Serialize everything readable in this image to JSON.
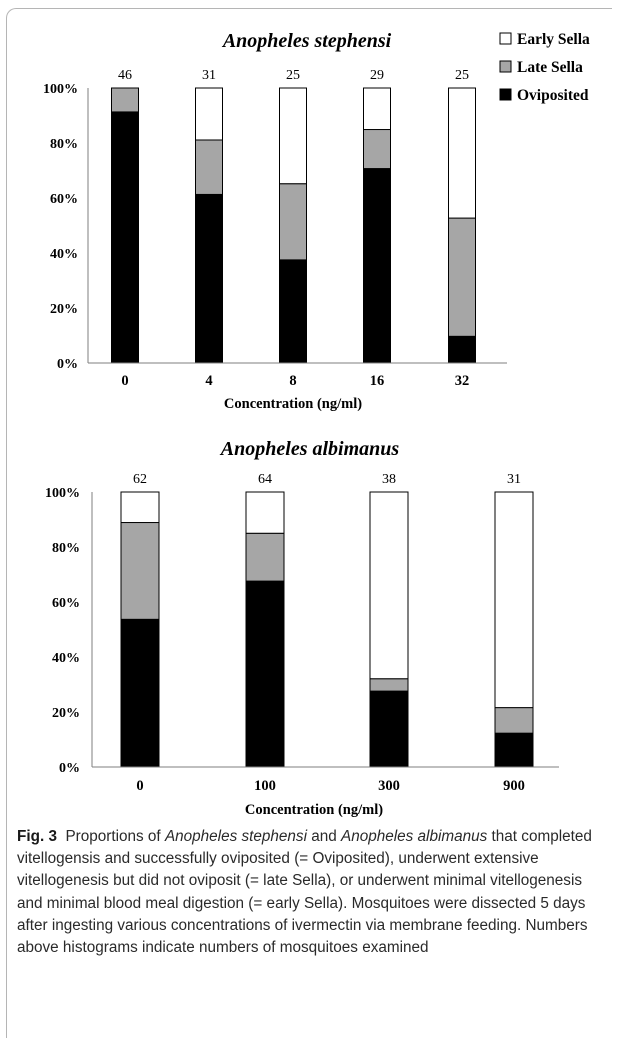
{
  "chart_data": [
    {
      "type": "bar",
      "stacked": true,
      "title": "Anopheles stephensi",
      "xlabel": "Concentration (ng/ml)",
      "ylabel": "",
      "ylim": [
        0,
        100
      ],
      "yticks": [
        "0%",
        "20%",
        "40%",
        "60%",
        "80%",
        "100%"
      ],
      "categories": [
        "0",
        "4",
        "8",
        "16",
        "32"
      ],
      "n_labels": [
        "46",
        "31",
        "25",
        "29",
        "25"
      ],
      "series": [
        {
          "name": "Oviposited",
          "color": "#000000",
          "values": [
            91.3,
            61.3,
            37.5,
            70.7,
            9.7
          ]
        },
        {
          "name": "Late Sella",
          "color": "#a6a6a6",
          "values": [
            8.7,
            19.8,
            27.7,
            14.2,
            43.0
          ]
        },
        {
          "name": "Early Sella",
          "color": "#ffffff",
          "values": [
            0,
            18.9,
            34.8,
            15.1,
            47.3
          ]
        }
      ],
      "legend": {
        "placement": "top-right",
        "entries": [
          "Early Sella",
          "Late Sella",
          "Oviposited"
        ]
      }
    },
    {
      "type": "bar",
      "stacked": true,
      "title": "Anopheles albimanus",
      "xlabel": "Concentration (ng/ml)",
      "ylabel": "",
      "ylim": [
        0,
        100
      ],
      "yticks": [
        "0%",
        "20%",
        "40%",
        "60%",
        "80%",
        "100%"
      ],
      "categories": [
        "0",
        "100",
        "300",
        "900"
      ],
      "n_labels": [
        "62",
        "64",
        "38",
        "31"
      ],
      "series": [
        {
          "name": "Oviposited",
          "color": "#000000",
          "values": [
            53.7,
            67.6,
            27.6,
            12.3
          ]
        },
        {
          "name": "Late Sella",
          "color": "#a6a6a6",
          "values": [
            35.2,
            17.4,
            4.5,
            9.3
          ]
        },
        {
          "name": "Early Sella",
          "color": "#ffffff",
          "values": [
            11.1,
            15.0,
            67.9,
            78.4
          ]
        }
      ]
    }
  ],
  "caption": {
    "label": "Fig. 3",
    "seg1": "Proportions of ",
    "species1": "Anopheles stephensi",
    "seg2": " and ",
    "species2": "Anopheles albimanus",
    "seg3": " that completed vitellogensis and successfully oviposited (= Oviposited), underwent extensive vitellogenesis but did not oviposit (= late Sella), or underwent minimal vitellogenesis and minimal blood meal digestion (= early Sella). Mosquitoes were dissected 5 days after ingesting various concentrations of ivermectin via membrane feeding. Numbers above histograms indicate numbers of mosquitoes examined"
  }
}
